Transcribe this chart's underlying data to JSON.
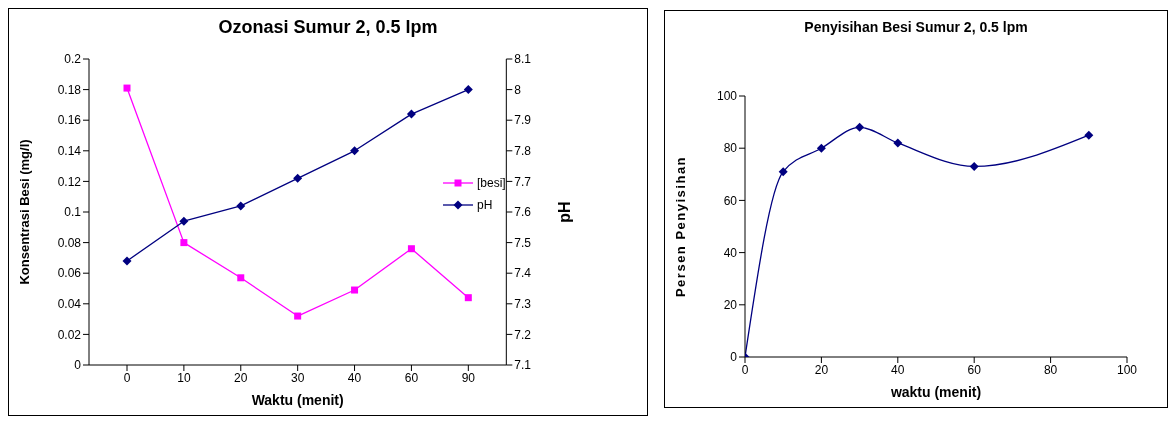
{
  "chart_data": [
    {
      "type": "line",
      "title": "Ozonasi Sumur 2, 0.5 lpm",
      "xlabel": "Waktu (menit)",
      "ylabel": "Konsentrasi Besi (mg/l)",
      "y2label": "pH",
      "categories": [
        "0",
        "10",
        "20",
        "30",
        "40",
        "60",
        "90"
      ],
      "series": [
        {
          "name": "[besi]",
          "color": "#ff00ff",
          "marker": "square",
          "values": [
            0.181,
            0.08,
            0.057,
            0.032,
            0.049,
            0.076,
            0.044
          ]
        },
        {
          "name": "pH",
          "color": "#000080",
          "marker": "diamond",
          "axis": "y2",
          "values": [
            7.44,
            7.57,
            7.62,
            7.71,
            7.8,
            7.92,
            8.0
          ]
        }
      ],
      "ylim": [
        0,
        0.2
      ],
      "yticks": [
        0,
        0.02,
        0.04,
        0.06,
        0.08,
        0.1,
        0.12,
        0.14,
        0.16,
        0.18,
        0.2
      ],
      "y2lim": [
        7.1,
        8.1
      ],
      "y2ticks": [
        7.1,
        7.2,
        7.3,
        7.4,
        7.5,
        7.6,
        7.7,
        7.8,
        7.9,
        8,
        8.1
      ],
      "legend": "right",
      "grid": false
    },
    {
      "type": "line",
      "title": "Penyisihan Besi Sumur 2, 0.5 lpm",
      "xlabel": "waktu (menit)",
      "ylabel": "Persen Penyisihan",
      "x": [
        0,
        10,
        20,
        30,
        40,
        60,
        90
      ],
      "series": [
        {
          "color": "#000080",
          "marker": "diamond",
          "values": [
            0,
            71,
            80,
            88,
            82,
            73,
            85
          ]
        }
      ],
      "xlim": [
        0,
        100
      ],
      "xticks": [
        0,
        20,
        40,
        60,
        80,
        100
      ],
      "ylim": [
        0,
        100
      ],
      "yticks": [
        0,
        20,
        40,
        60,
        80,
        100
      ],
      "legend": false,
      "grid": false
    }
  ]
}
